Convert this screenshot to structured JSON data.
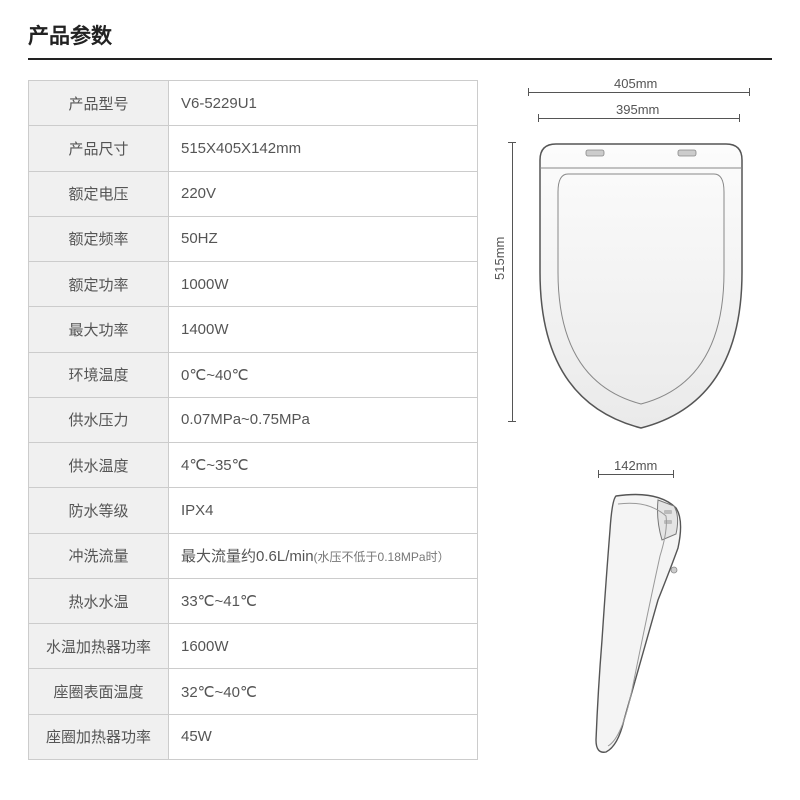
{
  "title": "产品参数",
  "specs": [
    {
      "label": "产品型号",
      "value": "V6-5229U1"
    },
    {
      "label": "产品尺寸",
      "value": "515X405X142mm"
    },
    {
      "label": "额定电压",
      "value": "220V"
    },
    {
      "label": "额定频率",
      "value": "50HZ"
    },
    {
      "label": "额定功率",
      "value": "1000W"
    },
    {
      "label": "最大功率",
      "value": "1400W"
    },
    {
      "label": "环境温度",
      "value": "0℃~40℃"
    },
    {
      "label": "供水压力",
      "value": "0.07MPa~0.75MPa"
    },
    {
      "label": "供水温度",
      "value": "4℃~35℃"
    },
    {
      "label": "防水等级",
      "value": "IPX4"
    },
    {
      "label": "冲洗流量",
      "value": "最大流量约0.6L/min",
      "note": "(水压不低于0.18MPa时）"
    },
    {
      "label": "热水水温",
      "value": "33℃~41℃"
    },
    {
      "label": "水温加热器功率",
      "value": "1600W"
    },
    {
      "label": "座圈表面温度",
      "value": "32℃~40℃"
    },
    {
      "label": "座圈加热器功率",
      "value": "45W"
    }
  ],
  "diagram": {
    "width_outer_label": "405mm",
    "width_inner_label": "395mm",
    "height_label": "515mm",
    "thickness_label": "142mm",
    "stroke_color": "#444",
    "shape_fill": "#f8f8f8",
    "shadow_fill": "#d8d8d8"
  }
}
